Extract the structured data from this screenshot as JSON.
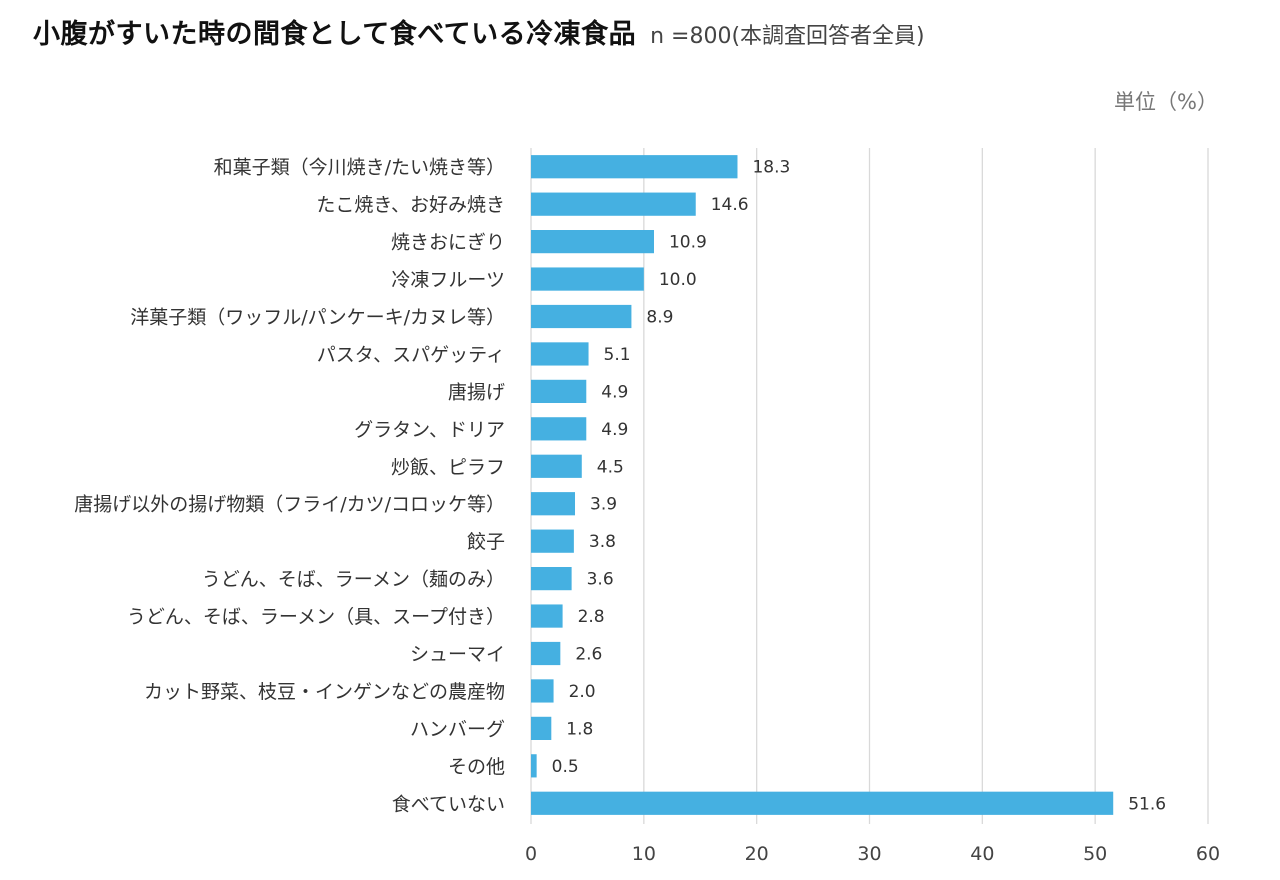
{
  "header": {
    "title": "小腹がすいた時の間食として食べている冷凍食品",
    "subtitle": "n =800(本調査回答者全員)",
    "unit": "単位（%）"
  },
  "chart_data": {
    "type": "bar",
    "orientation": "horizontal",
    "title": "小腹がすいた時の間食として食べている冷凍食品",
    "subtitle": "n =800(本調査回答者全員)",
    "unit_label": "単位（%）",
    "xlabel": "",
    "ylabel": "",
    "xlim": [
      0,
      60
    ],
    "xticks": [
      0,
      10,
      20,
      30,
      40,
      50,
      60
    ],
    "grid": true,
    "bar_color": "#45b0e1",
    "categories": [
      "和菓子類（今川焼き/たい焼き等）",
      "たこ焼き、お好み焼き",
      "焼きおにぎり",
      "冷凍フルーツ",
      "洋菓子類（ワッフル/パンケーキ/カヌレ等）",
      "パスタ、スパゲッティ",
      "唐揚げ",
      "グラタン、ドリア",
      "炒飯、ピラフ",
      "唐揚げ以外の揚げ物類（フライ/カツ/コロッケ等）",
      "餃子",
      "うどん、そば、ラーメン（麺のみ）",
      "うどん、そば、ラーメン（具、スープ付き）",
      "シューマイ",
      "カット野菜、枝豆・インゲンなどの農産物",
      "ハンバーグ",
      "その他",
      "食べていない"
    ],
    "values": [
      18.3,
      14.6,
      10.9,
      10.0,
      8.9,
      5.1,
      4.9,
      4.9,
      4.5,
      3.9,
      3.8,
      3.6,
      2.8,
      2.6,
      2.0,
      1.8,
      0.5,
      51.6
    ],
    "value_labels": [
      "18.3",
      "14.6",
      "10.9",
      "10.0",
      "8.9",
      "5.1",
      "4.9",
      "4.9",
      "4.5",
      "3.9",
      "3.8",
      "3.6",
      "2.8",
      "2.6",
      "2.0",
      "1.8",
      "0.5",
      "51.6"
    ]
  }
}
